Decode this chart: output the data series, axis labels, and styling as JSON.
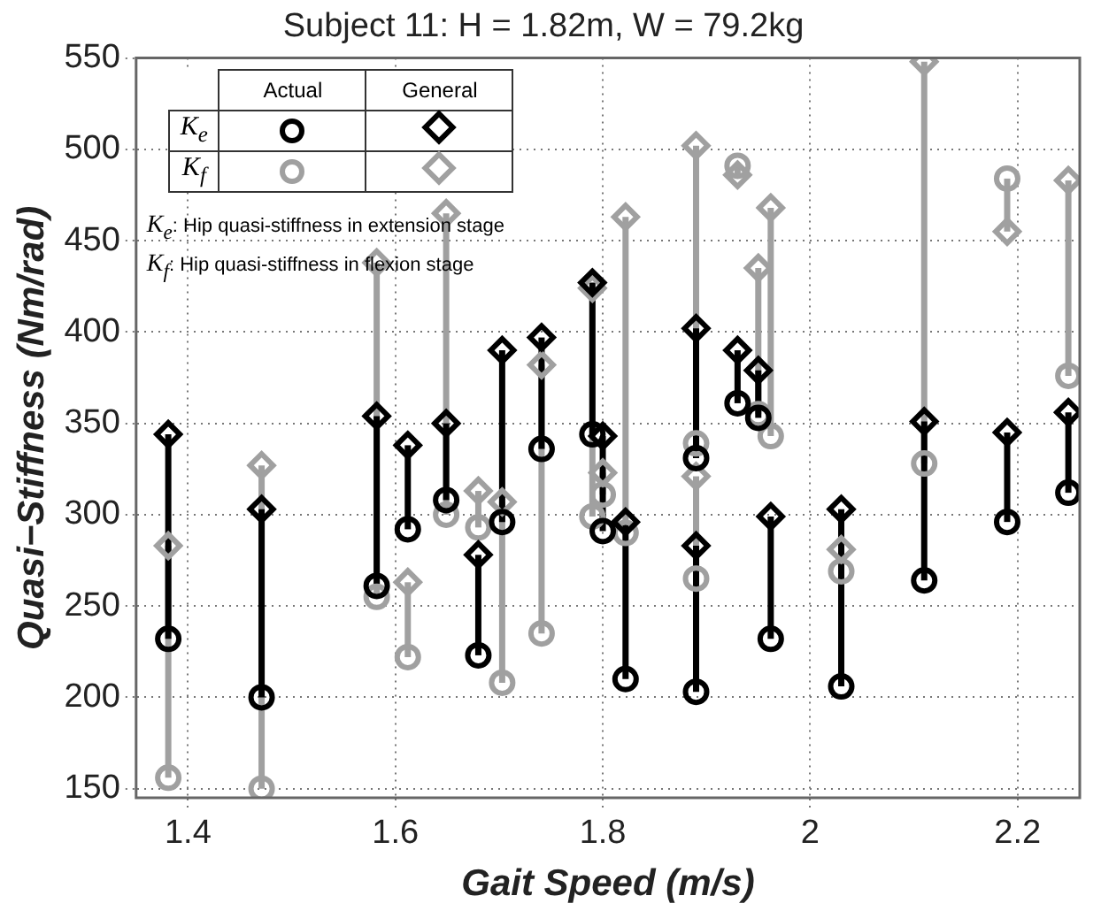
{
  "chart_data": {
    "type": "scatter",
    "title": "Subject 11: H = 1.82m, W = 79.2kg",
    "xlabel": "Gait Speed (m/s)",
    "ylabel": "Quasi−Stiffness (Nm/rad)",
    "x": [
      1.381,
      1.471,
      1.582,
      1.612,
      1.649,
      1.68,
      1.703,
      1.741,
      1.79,
      1.8,
      1.822,
      1.89,
      1.89,
      1.93,
      1.95,
      1.962,
      2.03,
      2.11,
      2.19,
      2.249
    ],
    "series": [
      {
        "color": "#000000",
        "marker": "circle",
        "values": [
          232,
          200,
          261,
          292,
          308,
          223,
          296,
          336,
          344,
          291,
          210,
          331,
          203,
          361,
          353,
          232,
          206,
          264,
          296,
          312
        ],
        "errors": [
          [
            232,
            344
          ],
          [
            200,
            303
          ],
          [
            261,
            354
          ],
          [
            292,
            338
          ],
          [
            308,
            350
          ],
          [
            223,
            278
          ],
          [
            296,
            390
          ],
          [
            336,
            397
          ],
          [
            344,
            427
          ],
          [
            291,
            343
          ],
          [
            210,
            296
          ],
          [
            331,
            402
          ],
          [
            203,
            283
          ],
          [
            361,
            390
          ],
          [
            353,
            379
          ],
          [
            232,
            299
          ],
          [
            206,
            303
          ],
          [
            264,
            351
          ],
          [
            296,
            345
          ],
          [
            312,
            356
          ]
        ]
      },
      {
        "color": "#000000",
        "marker": "diamond",
        "values": [
          344,
          303,
          354,
          338,
          350,
          278,
          390,
          397,
          427,
          343,
          296,
          402,
          283,
          390,
          379,
          299,
          303,
          351,
          345,
          356
        ]
      },
      {
        "color": "#a0a0a0",
        "marker": "circle",
        "values": [
          156,
          150,
          255,
          222,
          300,
          293,
          208,
          235,
          299,
          311,
          290,
          339,
          265,
          491,
          355,
          343,
          269,
          328,
          484,
          376
        ],
        "errors": [
          [
            156,
            283
          ],
          [
            150,
            327
          ],
          [
            255,
            438
          ],
          [
            222,
            263
          ],
          [
            300,
            465
          ],
          [
            293,
            313
          ],
          [
            208,
            307
          ],
          [
            235,
            382
          ],
          [
            299,
            424
          ],
          [
            311,
            323
          ],
          [
            290,
            463
          ],
          [
            339,
            502
          ],
          [
            265,
            321
          ],
          [
            486,
            491
          ],
          [
            355,
            435
          ],
          [
            343,
            468
          ],
          [
            269,
            281
          ],
          [
            328,
            548
          ],
          [
            455,
            484
          ],
          [
            376,
            483
          ]
        ]
      },
      {
        "color": "#a0a0a0",
        "marker": "diamond",
        "values": [
          283,
          327,
          438,
          263,
          465,
          313,
          307,
          382,
          424,
          323,
          463,
          502,
          321,
          486,
          435,
          468,
          281,
          548,
          455,
          483
        ]
      }
    ],
    "xlim": [
      1.35,
      2.26
    ],
    "xticks": [
      1.4,
      1.6,
      1.8,
      2,
      2.2
    ],
    "ylim": [
      145,
      550
    ],
    "yticks": [
      150,
      200,
      250,
      300,
      350,
      400,
      450,
      500,
      550
    ],
    "grid": true,
    "line_style": "dotted",
    "annotations": [
      "Actual",
      "General",
      "K$_{e}$",
      "K$_{f}$",
      "K$_{e}$: Hip quasi-stiffness in extension stage",
      "K$_{f}$: Hip quasi-stiffness in flexion stage"
    ]
  }
}
